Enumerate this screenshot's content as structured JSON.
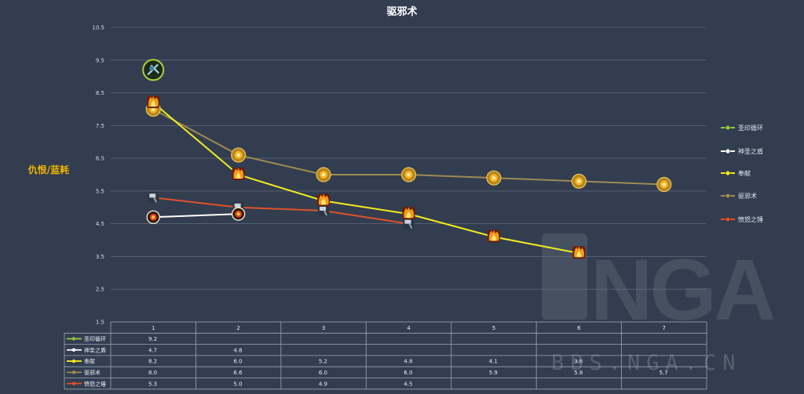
{
  "chart_data": {
    "type": "line",
    "title": "驱邪术",
    "ylabel": "仇恨/蓝耗",
    "xlabel": "",
    "categories": [
      "1",
      "2",
      "3",
      "4",
      "5",
      "6",
      "7"
    ],
    "ylim": [
      1.5,
      10.5
    ],
    "yticks": [
      "10.5",
      "9.5",
      "8.5",
      "7.5",
      "6.5",
      "5.5",
      "4.5",
      "3.5",
      "2.5",
      "1.5"
    ],
    "grid": true,
    "legend_position": "right",
    "series": [
      {
        "name": "圣印循环",
        "values": [
          9.2,
          null,
          null,
          null,
          null,
          null,
          null
        ],
        "color": "#8dc63f",
        "marker": "icon-seal"
      },
      {
        "name": "神圣之盾",
        "values": [
          4.7,
          4.8,
          null,
          null,
          null,
          null,
          null
        ],
        "color": "#ffffff",
        "marker": "icon-shield"
      },
      {
        "name": "奉献",
        "values": [
          8.2,
          6.0,
          5.2,
          4.8,
          4.1,
          3.6,
          null
        ],
        "color": "#f2ea1f",
        "marker": "icon-fire"
      },
      {
        "name": "驱邪术",
        "values": [
          8.0,
          6.6,
          6.0,
          6.0,
          5.9,
          5.8,
          5.7
        ],
        "color": "#9e8a52",
        "marker": "icon-sun"
      },
      {
        "name": "愤怒之锤",
        "values": [
          5.3,
          5.0,
          4.9,
          4.5,
          null,
          null,
          null
        ],
        "color": "#e0522a",
        "marker": "icon-hammer"
      }
    ],
    "table_rows": [
      {
        "label": "圣印循环",
        "cells": [
          "9.2",
          "",
          "",
          "",
          "",
          "",
          ""
        ]
      },
      {
        "label": "神圣之盾",
        "cells": [
          "4.7",
          "4.8",
          "",
          "",
          "",
          "",
          ""
        ]
      },
      {
        "label": "奉献",
        "cells": [
          "8.2",
          "6.0",
          "5.2",
          "4.8",
          "4.1",
          "3.6",
          ""
        ]
      },
      {
        "label": "驱邪术",
        "cells": [
          "8.0",
          "6.6",
          "6.0",
          "6.0",
          "5.9",
          "5.8",
          "5.7"
        ]
      },
      {
        "label": "愤怒之锤",
        "cells": [
          "5.3",
          "5.0",
          "4.9",
          "4.5",
          "",
          "",
          ""
        ]
      }
    ]
  },
  "watermark": {
    "logo_text": "NGA",
    "site_text": "BBS.NGA.CN"
  }
}
